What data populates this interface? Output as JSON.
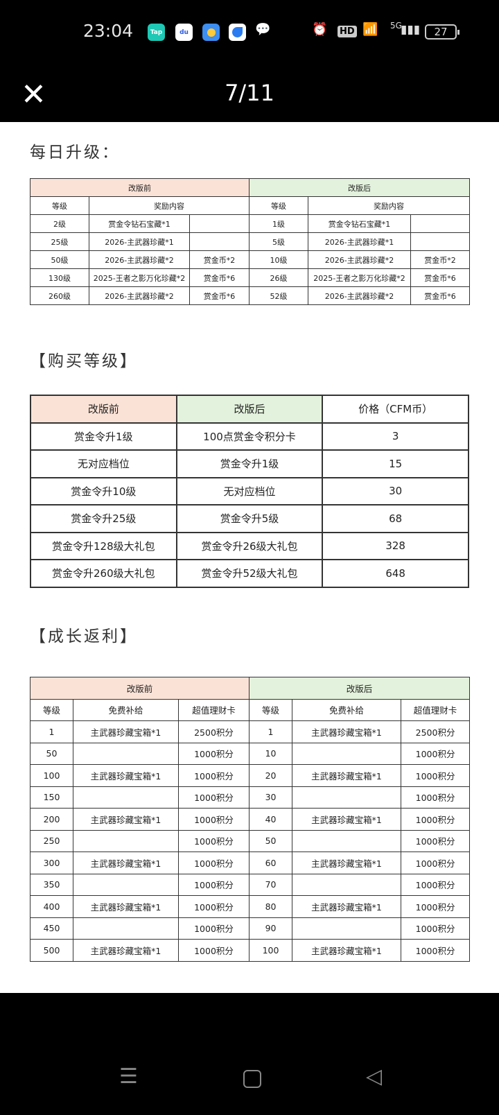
{
  "status_bar": {
    "time": "23:04",
    "apps": [
      "Tap",
      "du",
      "weather",
      "browser",
      "wechat"
    ],
    "battery": "27",
    "network": "5G"
  },
  "header": {
    "close_icon": "close-icon",
    "pager": "7/11"
  },
  "section1": {
    "title": "每日升级：",
    "before_label": "改版前",
    "after_label": "改版后",
    "col_level": "等级",
    "col_reward": "奖励内容",
    "rows": [
      {
        "b_level": "2级",
        "b_reward": "赏金令钻石宝藏*1",
        "b_extra": "",
        "a_level": "1级",
        "a_reward": "赏金令钻石宝藏*1",
        "a_extra": ""
      },
      {
        "b_level": "25级",
        "b_reward": "2026-主武器珍藏*1",
        "b_extra": "",
        "a_level": "5级",
        "a_reward": "2026-主武器珍藏*1",
        "a_extra": ""
      },
      {
        "b_level": "50级",
        "b_reward": "2026-主武器珍藏*2",
        "b_extra": "赏金币*2",
        "a_level": "10级",
        "a_reward": "2026-主武器珍藏*2",
        "a_extra": "赏金币*2"
      },
      {
        "b_level": "130级",
        "b_reward": "2025-王者之影万化珍藏*2",
        "b_extra": "赏金币*6",
        "a_level": "26级",
        "a_reward": "2025-王者之影万化珍藏*2",
        "a_extra": "赏金币*6"
      },
      {
        "b_level": "260级",
        "b_reward": "2026-主武器珍藏*2",
        "b_extra": "赏金币*6",
        "a_level": "52级",
        "a_reward": "2026-主武器珍藏*2",
        "a_extra": "赏金币*6"
      }
    ]
  },
  "section2": {
    "title": "【购买等级】",
    "headers": [
      "改版前",
      "改版后",
      "价格（CFM币）"
    ],
    "rows": [
      [
        "赏金令升1级",
        "100点赏金令积分卡",
        "3"
      ],
      [
        "无对应档位",
        "赏金令升1级",
        "15"
      ],
      [
        "赏金令升10级",
        "无对应档位",
        "30"
      ],
      [
        "赏金令升25级",
        "赏金令升5级",
        "68"
      ],
      [
        "赏金令升128级大礼包",
        "赏金令升26级大礼包",
        "328"
      ],
      [
        "赏金令升260级大礼包",
        "赏金令升52级大礼包",
        "648"
      ]
    ]
  },
  "section3": {
    "title": "【成长返利】",
    "before_label": "改版前",
    "after_label": "改版后",
    "headers": [
      "等级",
      "免费补给",
      "超值理财卡",
      "等级",
      "免费补给",
      "超值理财卡"
    ],
    "rows": [
      [
        "1",
        "主武器珍藏宝箱*1",
        "2500积分",
        "1",
        "主武器珍藏宝箱*1",
        "2500积分"
      ],
      [
        "50",
        "",
        "1000积分",
        "10",
        "",
        "1000积分"
      ],
      [
        "100",
        "主武器珍藏宝箱*1",
        "1000积分",
        "20",
        "主武器珍藏宝箱*1",
        "1000积分"
      ],
      [
        "150",
        "",
        "1000积分",
        "30",
        "",
        "1000积分"
      ],
      [
        "200",
        "主武器珍藏宝箱*1",
        "1000积分",
        "40",
        "主武器珍藏宝箱*1",
        "1000积分"
      ],
      [
        "250",
        "",
        "1000积分",
        "50",
        "",
        "1000积分"
      ],
      [
        "300",
        "主武器珍藏宝箱*1",
        "1000积分",
        "60",
        "主武器珍藏宝箱*1",
        "1000积分"
      ],
      [
        "350",
        "",
        "1000积分",
        "70",
        "",
        "1000积分"
      ],
      [
        "400",
        "主武器珍藏宝箱*1",
        "1000积分",
        "80",
        "主武器珍藏宝箱*1",
        "1000积分"
      ],
      [
        "450",
        "",
        "1000积分",
        "90",
        "",
        "1000积分"
      ],
      [
        "500",
        "主武器珍藏宝箱*1",
        "1000积分",
        "100",
        "主武器珍藏宝箱*1",
        "1000积分"
      ]
    ]
  },
  "colors": {
    "before_header": "#fbe2d6",
    "after_header": "#e3f2dc"
  }
}
